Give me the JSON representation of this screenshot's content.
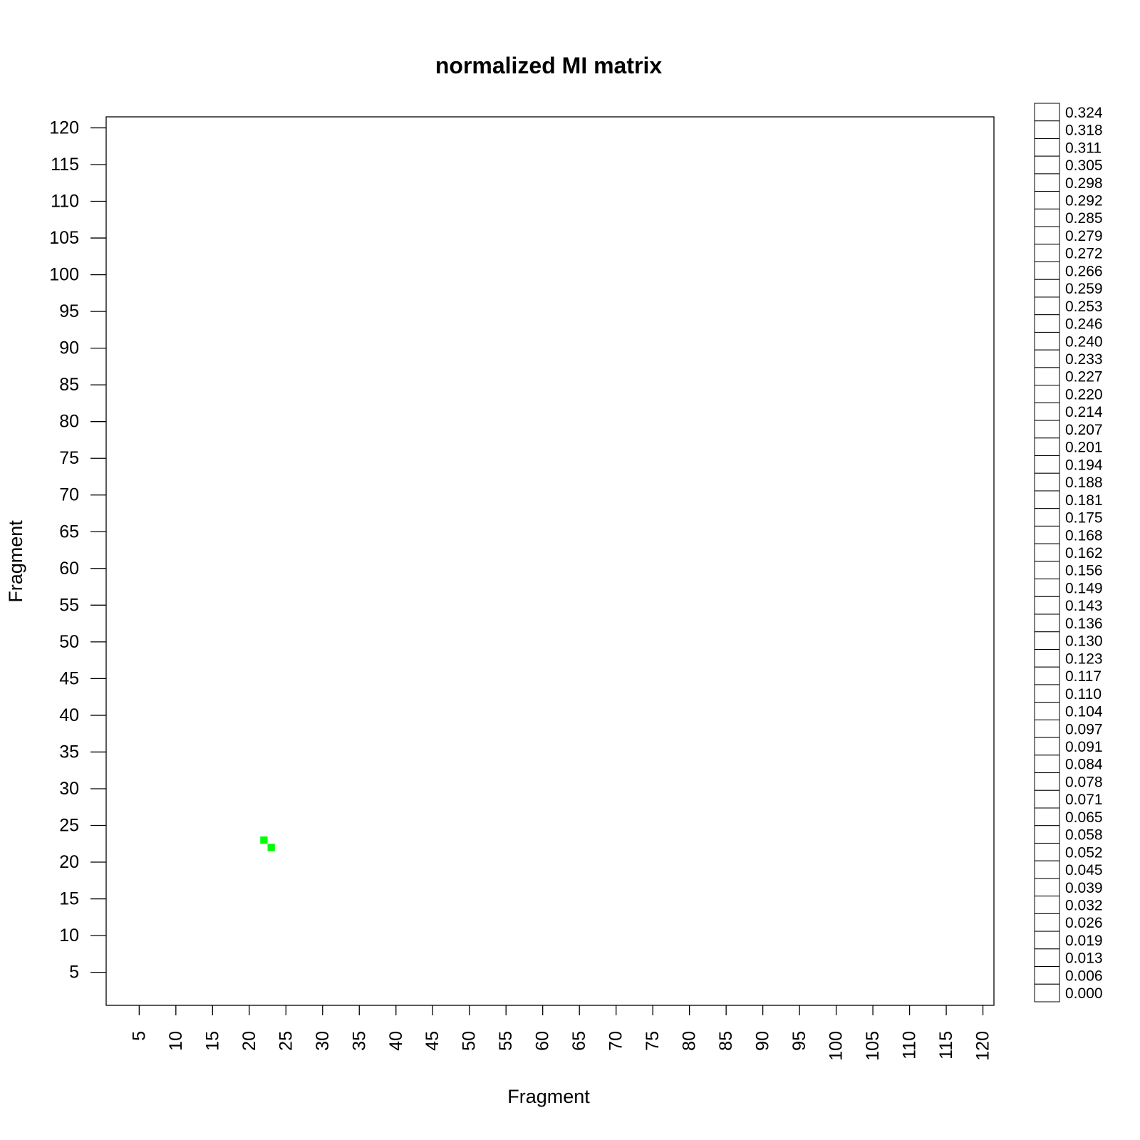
{
  "chart_data": {
    "type": "heatmap",
    "title": "normalized MI matrix",
    "xlabel": "Fragment",
    "ylabel": "Fragment",
    "xlim": [
      0.5,
      121.5
    ],
    "ylim": [
      0.5,
      121.5
    ],
    "x_ticks": [
      5,
      10,
      15,
      20,
      25,
      30,
      35,
      40,
      45,
      50,
      55,
      60,
      65,
      70,
      75,
      80,
      85,
      90,
      95,
      100,
      105,
      110,
      115,
      120
    ],
    "y_ticks": [
      5,
      10,
      15,
      20,
      25,
      30,
      35,
      40,
      45,
      50,
      55,
      60,
      65,
      70,
      75,
      80,
      85,
      90,
      95,
      100,
      105,
      110,
      115,
      120
    ],
    "legend_placement": "right",
    "legend_levels": [
      "0.324",
      "0.318",
      "0.311",
      "0.305",
      "0.298",
      "0.292",
      "0.285",
      "0.279",
      "0.272",
      "0.266",
      "0.259",
      "0.253",
      "0.246",
      "0.240",
      "0.233",
      "0.227",
      "0.220",
      "0.214",
      "0.207",
      "0.201",
      "0.194",
      "0.188",
      "0.181",
      "0.175",
      "0.168",
      "0.162",
      "0.156",
      "0.149",
      "0.143",
      "0.136",
      "0.130",
      "0.123",
      "0.117",
      "0.110",
      "0.104",
      "0.097",
      "0.091",
      "0.084",
      "0.078",
      "0.071",
      "0.065",
      "0.058",
      "0.052",
      "0.045",
      "0.039",
      "0.032",
      "0.026",
      "0.019",
      "0.013",
      "0.006",
      "0.000"
    ],
    "cells": [
      {
        "x": 22,
        "y": 23,
        "color": "#00ff00"
      },
      {
        "x": 23,
        "y": 22,
        "color": "#00ff00"
      }
    ],
    "background_color": "#ffffff"
  }
}
